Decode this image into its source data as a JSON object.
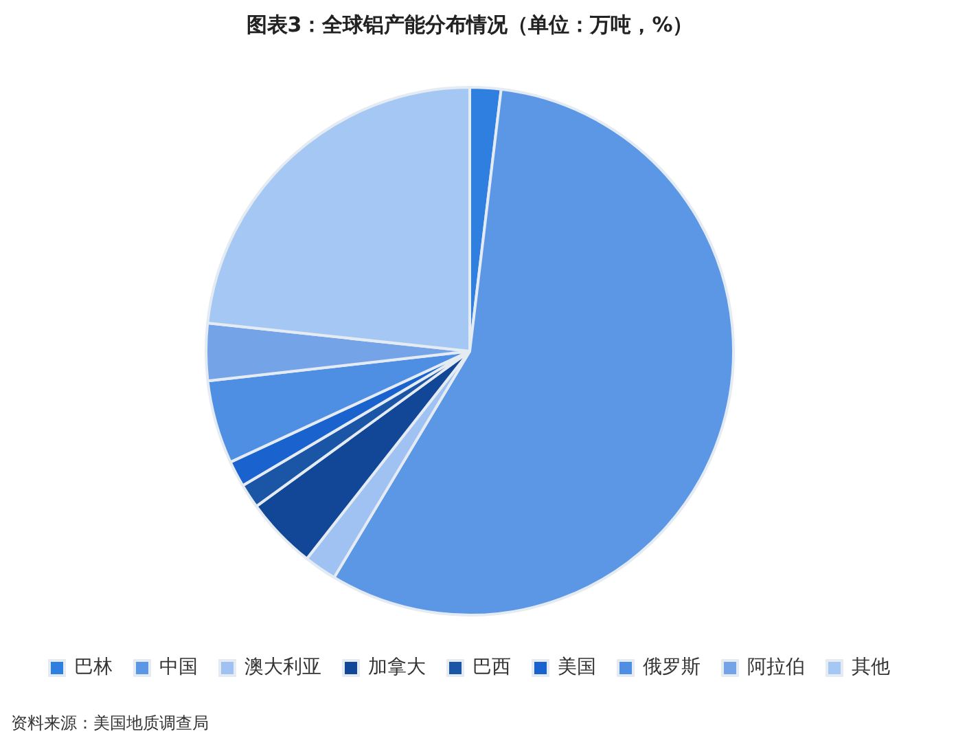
{
  "chart_data": {
    "type": "pie",
    "title": "图表3：全球铝产能分布情况（单位：万吨，%）",
    "categories": [
      "巴林",
      "中国",
      "澳大利亚",
      "加拿大",
      "巴西",
      "美国",
      "俄罗斯",
      "阿拉伯",
      "其他"
    ],
    "values": [
      1.9,
      56.7,
      2.0,
      4.4,
      1.5,
      1.6,
      5.1,
      3.5,
      23.3
    ],
    "colors": [
      "#2f7fe0",
      "#5b97e5",
      "#9fc2f2",
      "#124797",
      "#1b55a6",
      "#1a63cf",
      "#4f8fe3",
      "#74a3e8",
      "#a5c7f3"
    ],
    "legend": "bottom",
    "annotations": [
      "资料来源：美国地质调查局"
    ]
  }
}
